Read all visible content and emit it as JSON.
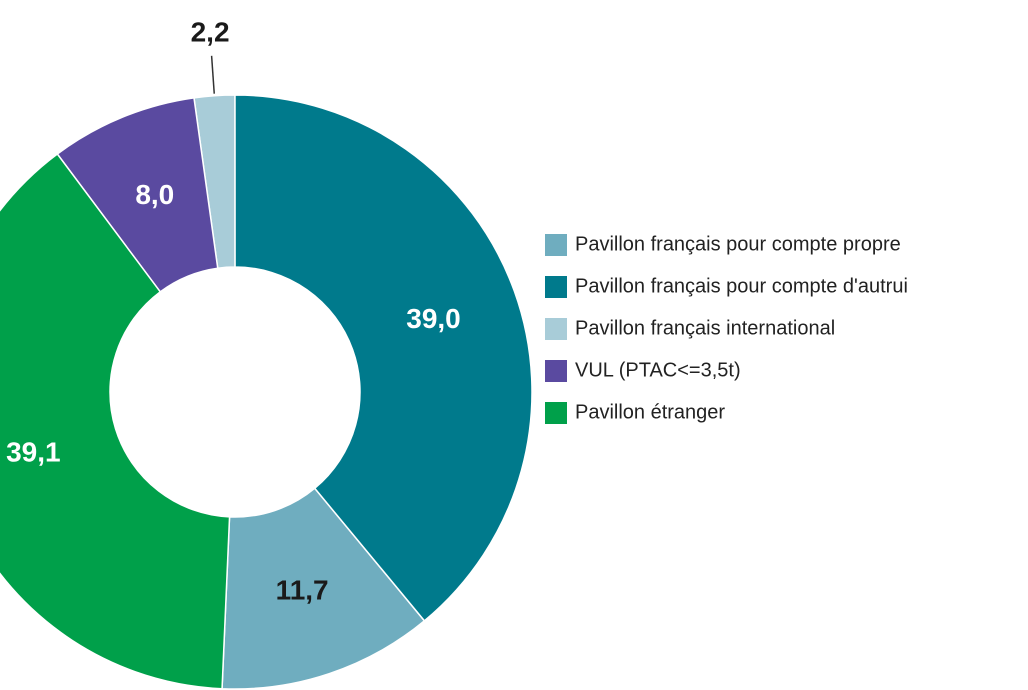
{
  "chart_data": {
    "type": "donut",
    "categories": [
      "Pavillon français pour compte propre",
      "Pavillon français pour compte d'autrui",
      "Pavillon français international",
      "VUL (PTAC<=3,5t)",
      "Pavillon étranger"
    ],
    "values": [
      11.7,
      39.0,
      2.2,
      8.0,
      39.1
    ],
    "value_labels": [
      "11,7",
      "39,0",
      "2,2",
      "8,0",
      "39,1"
    ],
    "colors": [
      "#6fadbf",
      "#007a8c",
      "#a8ccd8",
      "#5a4aa0",
      "#00a04a"
    ],
    "legend": "right"
  }
}
